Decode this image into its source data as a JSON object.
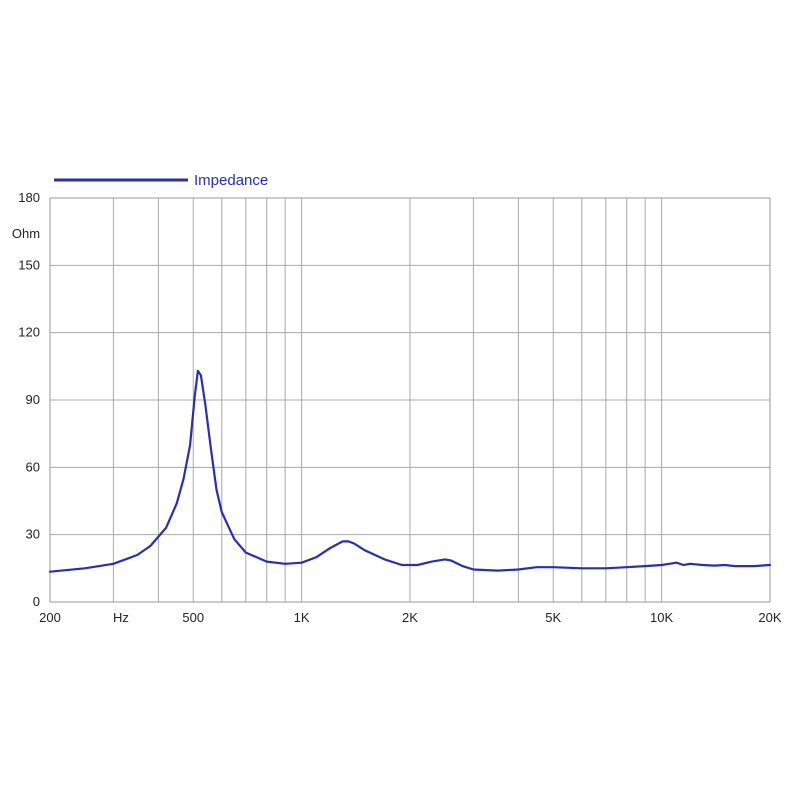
{
  "chart_data": {
    "type": "line",
    "x_scale": "log",
    "xlim": [
      200,
      20000
    ],
    "ylim": [
      0,
      180
    ],
    "grid": true,
    "legend_position": "top-left",
    "ylabel": "Ohm",
    "xlabel": "Hz",
    "y_ticks": [
      {
        "value": 0,
        "label": "0"
      },
      {
        "value": 30,
        "label": "30"
      },
      {
        "value": 60,
        "label": "60"
      },
      {
        "value": 90,
        "label": "90"
      },
      {
        "value": 120,
        "label": "120"
      },
      {
        "value": 150,
        "label": "150"
      },
      {
        "value": 180,
        "label": "180"
      }
    ],
    "x_tick_labels": [
      {
        "value": 200,
        "label": "200"
      },
      {
        "value": 500,
        "label": "500"
      },
      {
        "value": 1000,
        "label": "1K"
      },
      {
        "value": 2000,
        "label": "2K"
      },
      {
        "value": 5000,
        "label": "5K"
      },
      {
        "value": 10000,
        "label": "10K"
      },
      {
        "value": 20000,
        "label": "20K"
      }
    ],
    "x_gridlines": [
      300,
      400,
      500,
      600,
      700,
      800,
      900,
      1000,
      2000,
      3000,
      4000,
      5000,
      6000,
      7000,
      8000,
      9000,
      10000
    ],
    "series": [
      {
        "name": "Impedance",
        "color": "#2a2eb0",
        "x": [
          200,
          250,
          300,
          350,
          380,
          420,
          450,
          470,
          490,
          505,
          515,
          525,
          540,
          560,
          580,
          600,
          650,
          700,
          800,
          900,
          1000,
          1100,
          1200,
          1300,
          1350,
          1400,
          1500,
          1700,
          1900,
          2100,
          2300,
          2500,
          2600,
          2800,
          3000,
          3500,
          4000,
          4500,
          5000,
          6000,
          7000,
          8000,
          9000,
          10000,
          10500,
          11000,
          11500,
          12000,
          13000,
          14000,
          15000,
          16000,
          18000,
          20000
        ],
        "values": [
          13.5,
          15,
          17,
          21,
          25,
          33,
          44,
          55,
          70,
          92,
          103,
          101,
          88,
          68,
          50,
          40,
          28,
          22,
          18,
          17,
          17.5,
          20,
          24,
          27,
          27,
          26,
          23,
          19,
          16.5,
          16.5,
          18,
          19,
          18.5,
          16,
          14.5,
          14,
          14.5,
          15.5,
          15.5,
          15,
          15,
          15.5,
          16,
          16.5,
          17,
          17.5,
          16.5,
          17,
          16.5,
          16.2,
          16.5,
          16,
          16,
          16.5
        ]
      }
    ]
  }
}
